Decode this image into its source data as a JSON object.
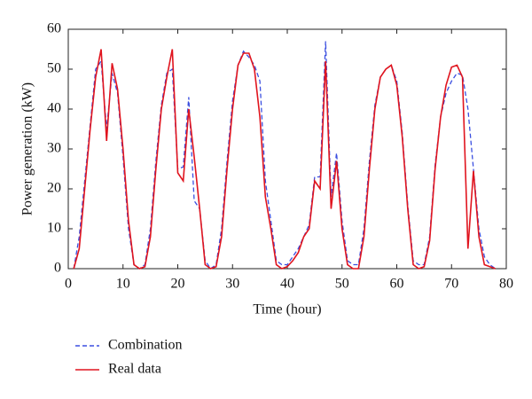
{
  "chart_data": {
    "type": "line",
    "x_label": "Time (hour)",
    "y_label": "Power generation (kW)",
    "x": [
      1,
      2,
      3,
      4,
      5,
      6,
      7,
      8,
      9,
      10,
      11,
      12,
      13,
      14,
      15,
      16,
      17,
      18,
      19,
      20,
      21,
      22,
      23,
      24,
      25,
      26,
      27,
      28,
      29,
      30,
      31,
      32,
      33,
      34,
      35,
      36,
      37,
      38,
      39,
      40,
      41,
      42,
      43,
      44,
      45,
      46,
      47,
      48,
      49,
      50,
      51,
      52,
      53,
      54,
      55,
      56,
      57,
      58,
      59,
      60,
      61,
      62,
      63,
      64,
      65,
      66,
      67,
      68,
      69,
      70,
      71,
      72,
      73,
      74,
      75,
      76,
      77,
      78
    ],
    "series": [
      {
        "name": "Combination",
        "color": "#3b4fe0",
        "dash": true,
        "values": [
          0,
          8,
          22,
          36,
          50,
          52,
          35,
          49,
          44,
          28,
          10,
          1,
          0,
          1,
          10,
          27,
          41,
          49,
          50,
          25,
          25.5,
          43,
          17,
          15,
          2,
          0,
          1,
          10,
          27,
          42,
          51,
          54.5,
          53,
          51,
          47,
          22,
          12,
          2,
          1,
          1,
          3,
          5,
          8,
          11,
          23,
          23,
          57,
          18,
          29,
          12,
          2,
          1,
          1,
          10,
          27,
          41,
          48,
          50,
          51,
          47,
          34,
          16,
          2,
          1,
          1,
          8,
          26,
          38,
          44,
          47,
          49,
          48.5,
          40,
          25,
          10,
          3,
          1,
          0
        ]
      },
      {
        "name": "Real data",
        "color": "#e0141e",
        "dash": false,
        "values": [
          0,
          5,
          20,
          35,
          48,
          55,
          32,
          51.5,
          45,
          30,
          12,
          1,
          0,
          0.5,
          8,
          25,
          40,
          48,
          55,
          24,
          22,
          40,
          28,
          15,
          1,
          0,
          0.5,
          8,
          25,
          40,
          51,
          54,
          54,
          50,
          38,
          18,
          10,
          1,
          0,
          0.5,
          2,
          4,
          8,
          10,
          22,
          20,
          52,
          15,
          27,
          10,
          1,
          0,
          0,
          8,
          25,
          40,
          48,
          50,
          51,
          46,
          33,
          15,
          1,
          0,
          0.5,
          7,
          25,
          38,
          46,
          50.5,
          51,
          48,
          5,
          24.5,
          8,
          1,
          0.5,
          0
        ]
      }
    ],
    "xlim": [
      0,
      80
    ],
    "ylim": [
      0,
      60
    ],
    "xticks": [
      0,
      10,
      20,
      30,
      40,
      50,
      60,
      70,
      80
    ],
    "yticks": [
      0,
      10,
      20,
      30,
      40,
      50,
      60
    ]
  }
}
